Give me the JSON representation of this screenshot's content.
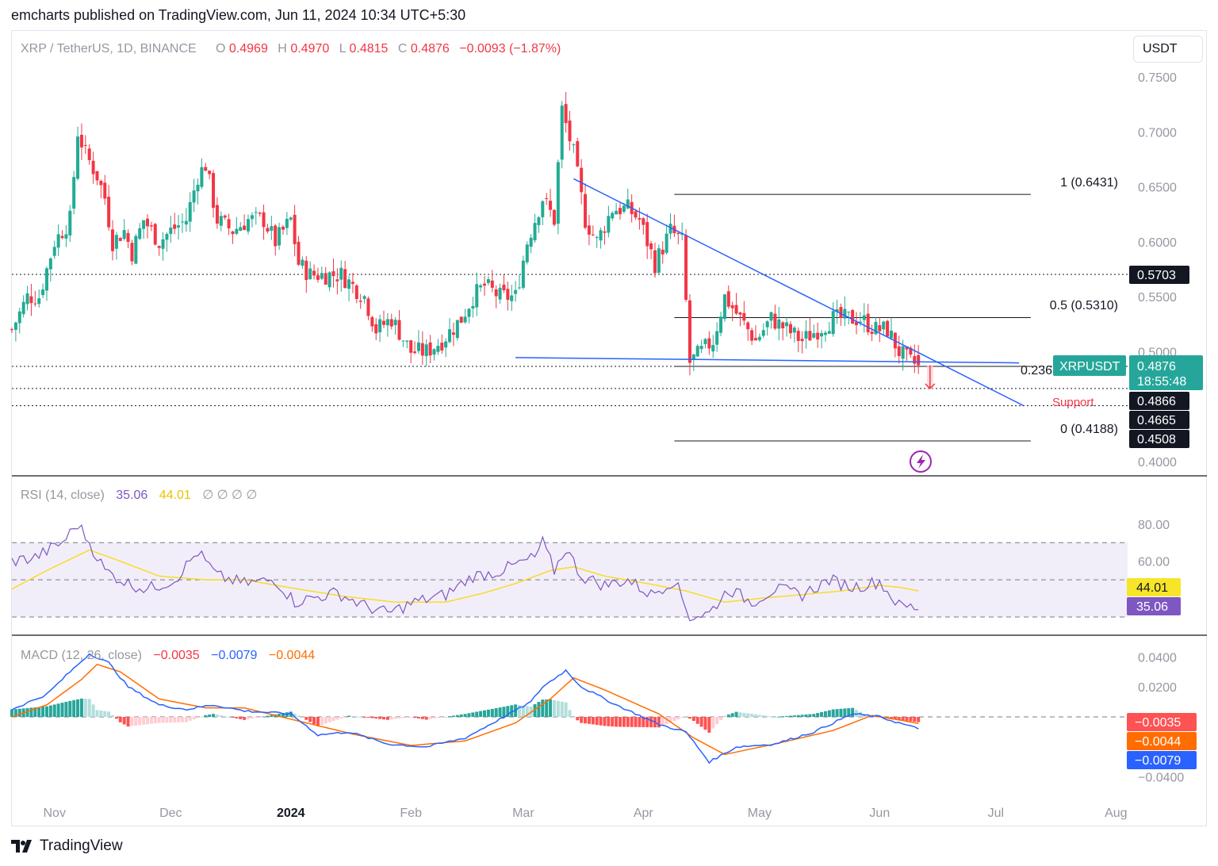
{
  "header": {
    "published_by": "emcharts published on TradingView.com, Jun 11, 2024 10:34 UTC+5:30"
  },
  "brand": {
    "name": "TradingView"
  },
  "currency_button": "USDT",
  "colors": {
    "up": "#22ab94",
    "down": "#f23645",
    "trendline": "#2962ff",
    "fib": "#131722",
    "rsi": "#7e57c2",
    "rsi_ma": "#f7dc2a",
    "macd": "#2962ff",
    "signal": "#ff6d00",
    "hist_pos_strong": "#26a69a",
    "hist_pos_weak": "#b2dfdb",
    "hist_neg_strong": "#ff5252",
    "hist_neg_weak": "#ffcdd2"
  },
  "legend": {
    "symbol": "XRP / TetherUS, 1D, BINANCE",
    "o_label": "O",
    "o": "0.4969",
    "h_label": "H",
    "h": "0.4970",
    "l_label": "L",
    "l": "0.4815",
    "c_label": "C",
    "c": "0.4876",
    "change": "−0.0093 (−1.87%)"
  },
  "rsi_legend": {
    "label": "RSI (14, close)",
    "rsi": "35.06",
    "ma": "44.01",
    "extras": "∅ ∅ ∅ ∅"
  },
  "macd_legend": {
    "label": "MACD (12, 26, close)",
    "hist": "−0.0035",
    "macd": "−0.0079",
    "signal": "−0.0044"
  },
  "price_tag": {
    "symbol": "XRPUSDT",
    "price": "0.4876",
    "countdown": "18:55:48"
  },
  "level_tags": [
    "0.5703",
    "0.4866",
    "0.4665",
    "0.4508"
  ],
  "rsi_tags": {
    "ma": "44.01",
    "rsi": "35.06"
  },
  "macd_tags": {
    "hist": "−0.0035",
    "signal": "−0.0044",
    "macd": "−0.0079"
  },
  "annotations": {
    "fib_1": "1 (0.6431)",
    "fib_05": "0.5 (0.5310)",
    "fib_0236": "0.236",
    "fib_0": "0 (0.4188)",
    "support": "Support"
  },
  "chart_data": [
    {
      "type": "candlestick",
      "title": "XRP / TetherUS, 1D, BINANCE",
      "y_ticks": [
        "0.7500",
        "0.7000",
        "0.6500",
        "0.6000",
        "0.5500",
        "0.5000",
        "0.4000"
      ],
      "ylim": [
        0.4,
        0.75
      ],
      "x_ticks": [
        "Nov",
        "Dec",
        "2024",
        "Feb",
        "Mar",
        "Apr",
        "May",
        "Jun",
        "Jul",
        "Aug"
      ],
      "x_range": [
        "2023-10-21",
        "2024-08-04"
      ],
      "keypoints": [
        [
          "2023-10-21",
          0.52
        ],
        [
          "2023-10-25",
          0.55
        ],
        [
          "2023-10-28",
          0.55
        ],
        [
          "2023-11-01",
          0.6
        ],
        [
          "2023-11-05",
          0.62
        ],
        [
          "2023-11-07",
          0.7
        ],
        [
          "2023-11-09",
          0.68
        ],
        [
          "2023-11-12",
          0.66
        ],
        [
          "2023-11-14",
          0.64
        ],
        [
          "2023-11-16",
          0.6
        ],
        [
          "2023-11-19",
          0.61
        ],
        [
          "2023-11-21",
          0.59
        ],
        [
          "2023-11-24",
          0.62
        ],
        [
          "2023-11-28",
          0.6
        ],
        [
          "2023-12-01",
          0.61
        ],
        [
          "2023-12-05",
          0.62
        ],
        [
          "2023-12-08",
          0.66
        ],
        [
          "2023-12-10",
          0.67
        ],
        [
          "2023-12-13",
          0.62
        ],
        [
          "2023-12-17",
          0.61
        ],
        [
          "2023-12-21",
          0.62
        ],
        [
          "2023-12-25",
          0.62
        ],
        [
          "2023-12-28",
          0.6
        ],
        [
          "2024-01-01",
          0.62
        ],
        [
          "2024-01-03",
          0.58
        ],
        [
          "2024-01-06",
          0.57
        ],
        [
          "2024-01-10",
          0.57
        ],
        [
          "2024-01-14",
          0.57
        ],
        [
          "2024-01-17",
          0.56
        ],
        [
          "2024-01-20",
          0.55
        ],
        [
          "2024-01-23",
          0.52
        ],
        [
          "2024-01-27",
          0.53
        ],
        [
          "2024-02-01",
          0.5
        ],
        [
          "2024-02-05",
          0.5
        ],
        [
          "2024-02-09",
          0.51
        ],
        [
          "2024-02-14",
          0.53
        ],
        [
          "2024-02-17",
          0.55
        ],
        [
          "2024-02-20",
          0.56
        ],
        [
          "2024-02-24",
          0.55
        ],
        [
          "2024-02-28",
          0.55
        ],
        [
          "2024-03-02",
          0.6
        ],
        [
          "2024-03-04",
          0.62
        ],
        [
          "2024-03-06",
          0.64
        ],
        [
          "2024-03-09",
          0.62
        ],
        [
          "2024-03-11",
          0.72
        ],
        [
          "2024-03-14",
          0.68
        ],
        [
          "2024-03-17",
          0.62
        ],
        [
          "2024-03-20",
          0.6
        ],
        [
          "2024-03-24",
          0.63
        ],
        [
          "2024-03-28",
          0.63
        ],
        [
          "2024-03-31",
          0.62
        ],
        [
          "2024-04-04",
          0.58
        ],
        [
          "2024-04-08",
          0.61
        ],
        [
          "2024-04-11",
          0.6
        ],
        [
          "2024-04-13",
          0.49
        ],
        [
          "2024-04-16",
          0.5
        ],
        [
          "2024-04-19",
          0.51
        ],
        [
          "2024-04-22",
          0.55
        ],
        [
          "2024-04-26",
          0.53
        ],
        [
          "2024-04-30",
          0.51
        ],
        [
          "2024-05-04",
          0.53
        ],
        [
          "2024-05-08",
          0.52
        ],
        [
          "2024-05-12",
          0.51
        ],
        [
          "2024-05-16",
          0.52
        ],
        [
          "2024-05-20",
          0.53
        ],
        [
          "2024-05-23",
          0.53
        ],
        [
          "2024-05-27",
          0.53
        ],
        [
          "2024-05-31",
          0.52
        ],
        [
          "2024-06-03",
          0.52
        ],
        [
          "2024-06-06",
          0.5
        ],
        [
          "2024-06-09",
          0.49
        ],
        [
          "2024-06-11",
          0.4876
        ]
      ],
      "annotation_lines": [
        {
          "label": "1 (0.6431)",
          "value": 0.6431,
          "from": "2024-04-09",
          "to": "2024-07-10"
        },
        {
          "label": "0.5 (0.5310)",
          "value": 0.531,
          "from": "2024-04-09",
          "to": "2024-07-10"
        },
        {
          "label": "0.236",
          "value": 0.4866,
          "from": "2024-04-09",
          "to": "2024-07-10"
        },
        {
          "label": "0 (0.4188)",
          "value": 0.4188,
          "from": "2024-04-09",
          "to": "2024-07-10"
        }
      ],
      "horizontal_levels": [
        0.5703,
        0.4866,
        0.4665,
        0.4508
      ],
      "trendlines": [
        {
          "from": [
            "2024-03-14",
            0.6573
          ],
          "to": [
            "2024-07-08",
            0.4511
          ]
        },
        {
          "from": [
            "2024-02-28",
            0.4946
          ],
          "to": [
            "2024-07-07",
            0.4898
          ]
        }
      ]
    },
    {
      "type": "line",
      "title": "RSI (14, close)",
      "y_ticks": [
        "80.00",
        "60.00"
      ],
      "ylim": [
        30,
        88
      ],
      "bands": [
        70,
        50,
        30
      ],
      "series": [
        {
          "name": "RSI",
          "keypoints": [
            [
              "2023-10-21",
              60
            ],
            [
              "2023-10-27",
              62
            ],
            [
              "2023-11-03",
              70
            ],
            [
              "2023-11-07",
              80
            ],
            [
              "2023-11-10",
              70
            ],
            [
              "2023-11-14",
              55
            ],
            [
              "2023-11-20",
              48
            ],
            [
              "2023-11-25",
              45
            ],
            [
              "2023-12-02",
              50
            ],
            [
              "2023-12-08",
              65
            ],
            [
              "2023-12-13",
              52
            ],
            [
              "2023-12-20",
              48
            ],
            [
              "2023-12-28",
              50
            ],
            [
              "2024-01-02",
              38
            ],
            [
              "2024-01-06",
              40
            ],
            [
              "2024-01-13",
              43
            ],
            [
              "2024-01-20",
              36
            ],
            [
              "2024-01-26",
              32
            ],
            [
              "2024-02-02",
              38
            ],
            [
              "2024-02-10",
              42
            ],
            [
              "2024-02-17",
              52
            ],
            [
              "2024-02-23",
              54
            ],
            [
              "2024-02-28",
              58
            ],
            [
              "2024-03-04",
              62
            ],
            [
              "2024-03-06",
              70
            ],
            [
              "2024-03-09",
              55
            ],
            [
              "2024-03-12",
              67
            ],
            [
              "2024-03-16",
              52
            ],
            [
              "2024-03-22",
              47
            ],
            [
              "2024-03-28",
              50
            ],
            [
              "2024-04-03",
              42
            ],
            [
              "2024-04-09",
              50
            ],
            [
              "2024-04-13",
              30
            ],
            [
              "2024-04-18",
              32
            ],
            [
              "2024-04-23",
              45
            ],
            [
              "2024-04-29",
              38
            ],
            [
              "2024-05-05",
              45
            ],
            [
              "2024-05-12",
              42
            ],
            [
              "2024-05-19",
              50
            ],
            [
              "2024-05-25",
              46
            ],
            [
              "2024-06-01",
              49
            ],
            [
              "2024-06-06",
              36
            ],
            [
              "2024-06-11",
              35.06
            ]
          ]
        },
        {
          "name": "RSI-based MA",
          "keypoints": [
            [
              "2023-10-21",
              45
            ],
            [
              "2023-10-30",
              55
            ],
            [
              "2023-11-10",
              66
            ],
            [
              "2023-11-18",
              60
            ],
            [
              "2023-11-28",
              52
            ],
            [
              "2023-12-10",
              50
            ],
            [
              "2023-12-20",
              50
            ],
            [
              "2024-01-03",
              45
            ],
            [
              "2024-01-15",
              41
            ],
            [
              "2024-01-28",
              38
            ],
            [
              "2024-02-10",
              38
            ],
            [
              "2024-02-20",
              43
            ],
            [
              "2024-02-28",
              48
            ],
            [
              "2024-03-08",
              55
            ],
            [
              "2024-03-14",
              57
            ],
            [
              "2024-03-22",
              52
            ],
            [
              "2024-04-02",
              48
            ],
            [
              "2024-04-12",
              44
            ],
            [
              "2024-04-22",
              38
            ],
            [
              "2024-05-01",
              40
            ],
            [
              "2024-05-12",
              42
            ],
            [
              "2024-05-22",
              44
            ],
            [
              "2024-06-01",
              47
            ],
            [
              "2024-06-06",
              46
            ],
            [
              "2024-06-11",
              44.01
            ]
          ]
        }
      ]
    },
    {
      "type": "line",
      "title": "MACD (12, 26, close)",
      "y_ticks": [
        "0.0400",
        "0.0200",
        "−0.0400"
      ],
      "ylim": [
        -0.047,
        0.047
      ],
      "series": [
        {
          "name": "MACD",
          "keypoints": [
            [
              "2023-10-21",
              0.005
            ],
            [
              "2023-10-30",
              0.015
            ],
            [
              "2023-11-05",
              0.03
            ],
            [
              "2023-11-10",
              0.042
            ],
            [
              "2023-11-15",
              0.036
            ],
            [
              "2023-11-20",
              0.02
            ],
            [
              "2023-11-28",
              0.008
            ],
            [
              "2023-12-05",
              0.005
            ],
            [
              "2023-12-12",
              0.008
            ],
            [
              "2023-12-20",
              0.004
            ],
            [
              "2024-01-01",
              0.002
            ],
            [
              "2024-01-08",
              -0.012
            ],
            [
              "2024-01-16",
              -0.01
            ],
            [
              "2024-01-26",
              -0.018
            ],
            [
              "2024-02-05",
              -0.02
            ],
            [
              "2024-02-15",
              -0.014
            ],
            [
              "2024-02-25",
              0.0
            ],
            [
              "2024-03-03",
              0.01
            ],
            [
              "2024-03-06",
              0.02
            ],
            [
              "2024-03-12",
              0.031
            ],
            [
              "2024-03-16",
              0.02
            ],
            [
              "2024-03-25",
              0.008
            ],
            [
              "2024-04-05",
              -0.005
            ],
            [
              "2024-04-12",
              -0.01
            ],
            [
              "2024-04-18",
              -0.03
            ],
            [
              "2024-04-25",
              -0.02
            ],
            [
              "2024-05-05",
              -0.018
            ],
            [
              "2024-05-15",
              -0.01
            ],
            [
              "2024-05-25",
              0.002
            ],
            [
              "2024-06-01",
              0.0
            ],
            [
              "2024-06-06",
              -0.004
            ],
            [
              "2024-06-11",
              -0.0079
            ]
          ]
        },
        {
          "name": "Signal",
          "keypoints": [
            [
              "2023-10-21",
              0.0
            ],
            [
              "2023-10-30",
              0.008
            ],
            [
              "2023-11-08",
              0.025
            ],
            [
              "2023-11-12",
              0.035
            ],
            [
              "2023-11-18",
              0.03
            ],
            [
              "2023-11-28",
              0.012
            ],
            [
              "2023-12-10",
              0.006
            ],
            [
              "2023-12-20",
              0.006
            ],
            [
              "2024-01-05",
              -0.004
            ],
            [
              "2024-01-18",
              -0.012
            ],
            [
              "2024-02-01",
              -0.019
            ],
            [
              "2024-02-15",
              -0.016
            ],
            [
              "2024-02-28",
              -0.004
            ],
            [
              "2024-03-08",
              0.012
            ],
            [
              "2024-03-14",
              0.026
            ],
            [
              "2024-03-22",
              0.018
            ],
            [
              "2024-04-05",
              0.002
            ],
            [
              "2024-04-14",
              -0.014
            ],
            [
              "2024-04-22",
              -0.025
            ],
            [
              "2024-05-05",
              -0.018
            ],
            [
              "2024-05-20",
              -0.009
            ],
            [
              "2024-05-30",
              0.001
            ],
            [
              "2024-06-06",
              -0.002
            ],
            [
              "2024-06-11",
              -0.0044
            ]
          ]
        }
      ]
    }
  ]
}
